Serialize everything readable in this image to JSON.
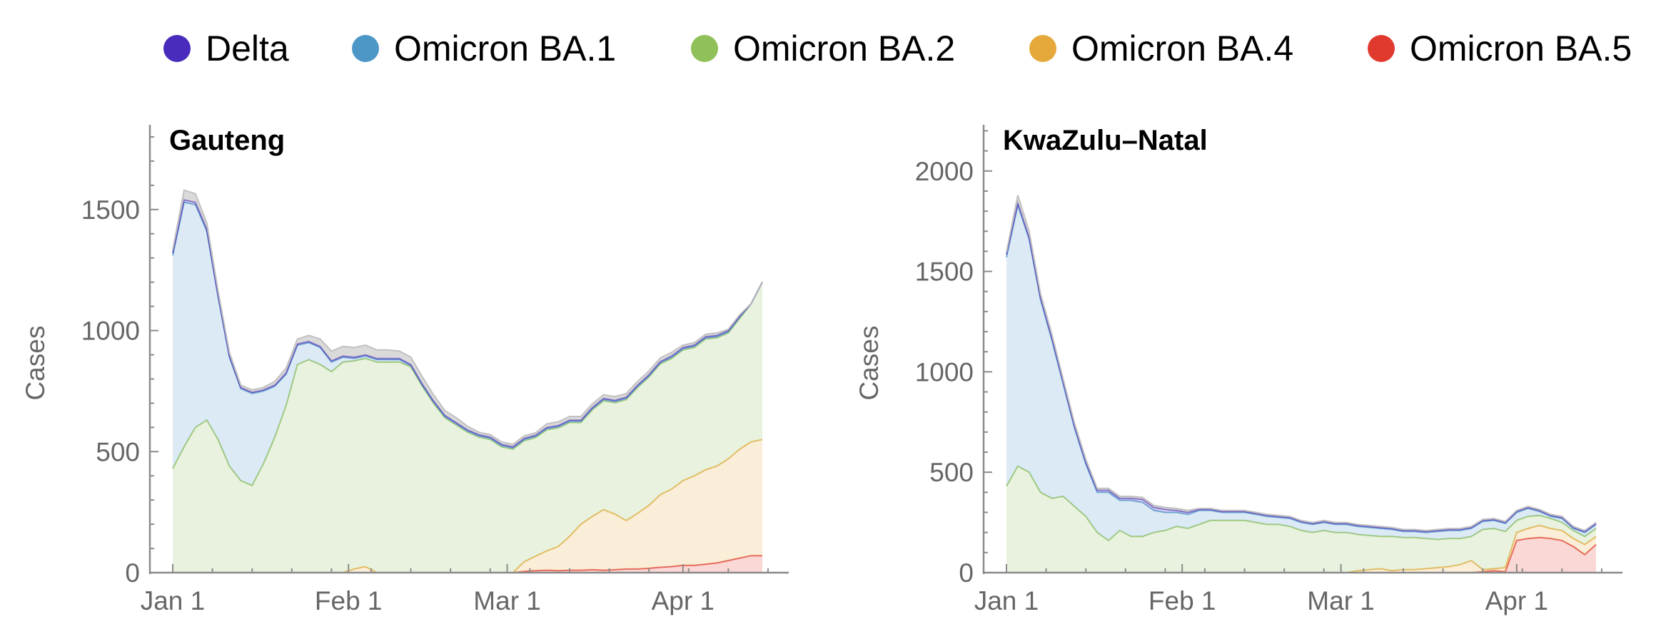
{
  "chart_data": [
    {
      "type": "area",
      "title": "Gauteng",
      "xlabel": "",
      "ylabel": "Cases",
      "ylim": [
        0,
        1850
      ],
      "yticks": [
        0,
        500,
        1000,
        1500
      ],
      "x_tick_labels": [
        {
          "label": "Jan 1",
          "day": 0
        },
        {
          "label": "Feb 1",
          "day": 31
        },
        {
          "label": "Mar 1",
          "day": 59
        },
        {
          "label": "Apr 1",
          "day": 90
        }
      ],
      "x": [
        0,
        2,
        4,
        6,
        8,
        10,
        12,
        14,
        16,
        18,
        20,
        22,
        24,
        26,
        28,
        30,
        32,
        34,
        36,
        38,
        40,
        42,
        44,
        46,
        48,
        50,
        52,
        54,
        56,
        58,
        60,
        62,
        64,
        66,
        68,
        70,
        72,
        74,
        76,
        78,
        80,
        82,
        84,
        86,
        88,
        90,
        92,
        94,
        96,
        98,
        100,
        102,
        104
      ],
      "stack_order": [
        "Omicron BA.5",
        "Omicron BA.4",
        "Omicron BA.2",
        "Omicron BA.1",
        "Delta"
      ],
      "series": [
        {
          "name": "Omicron BA.5",
          "color": "#e03a2f",
          "values": [
            0,
            0,
            0,
            0,
            0,
            0,
            0,
            0,
            0,
            0,
            0,
            0,
            0,
            0,
            0,
            0,
            0,
            0,
            0,
            0,
            0,
            0,
            0,
            0,
            0,
            0,
            0,
            0,
            0,
            0,
            0,
            5,
            8,
            10,
            8,
            10,
            10,
            12,
            10,
            12,
            15,
            15,
            18,
            22,
            25,
            30,
            30,
            35,
            40,
            50,
            60,
            70,
            70
          ]
        },
        {
          "name": "Omicron BA.4",
          "color": "#e4a93a",
          "values": [
            0,
            0,
            0,
            0,
            0,
            0,
            0,
            0,
            0,
            0,
            0,
            0,
            0,
            0,
            0,
            0,
            15,
            25,
            0,
            0,
            0,
            0,
            0,
            0,
            0,
            0,
            0,
            0,
            0,
            0,
            0,
            40,
            60,
            80,
            100,
            140,
            190,
            220,
            250,
            230,
            200,
            230,
            260,
            300,
            320,
            350,
            370,
            390,
            400,
            420,
            450,
            470,
            480
          ]
        },
        {
          "name": "Omicron BA.2",
          "color": "#8fc05a",
          "values": [
            430,
            520,
            600,
            630,
            550,
            440,
            380,
            360,
            450,
            560,
            690,
            860,
            880,
            860,
            830,
            870,
            860,
            860,
            870,
            870,
            870,
            850,
            770,
            700,
            640,
            610,
            580,
            560,
            550,
            520,
            510,
            500,
            490,
            500,
            490,
            470,
            420,
            440,
            450,
            460,
            500,
            520,
            530,
            540,
            540,
            540,
            530,
            540,
            530,
            520,
            540,
            570,
            650
          ]
        },
        {
          "name": "Omicron BA.1",
          "color": "#4d97c7",
          "values": [
            880,
            1010,
            920,
            780,
            590,
            450,
            380,
            380,
            300,
            210,
            130,
            80,
            70,
            70,
            40,
            20,
            10,
            10,
            10,
            10,
            10,
            5,
            5,
            5,
            5,
            5,
            5,
            5,
            5,
            5,
            5,
            5,
            5,
            5,
            5,
            5,
            5,
            5,
            5,
            5,
            5,
            5,
            5,
            5,
            5,
            5,
            5,
            5,
            5,
            5,
            5,
            0,
            0
          ]
        },
        {
          "name": "Delta",
          "color": "#4a2cbd",
          "values": [
            10,
            10,
            10,
            10,
            5,
            5,
            5,
            5,
            5,
            5,
            5,
            5,
            5,
            5,
            5,
            5,
            5,
            5,
            5,
            5,
            5,
            5,
            5,
            5,
            5,
            5,
            5,
            5,
            5,
            5,
            5,
            5,
            5,
            5,
            5,
            5,
            5,
            5,
            5,
            5,
            5,
            5,
            5,
            5,
            5,
            5,
            5,
            5,
            5,
            5,
            5,
            0,
            0
          ]
        }
      ],
      "other_band": {
        "color": "#bcbcbc",
        "values": [
          15,
          40,
          35,
          25,
          20,
          15,
          10,
          10,
          10,
          15,
          20,
          20,
          25,
          30,
          40,
          40,
          40,
          40,
          35,
          35,
          30,
          30,
          30,
          25,
          20,
          20,
          15,
          10,
          10,
          10,
          10,
          10,
          10,
          15,
          15,
          15,
          15,
          15,
          15,
          15,
          15,
          15,
          15,
          15,
          15,
          10,
          10,
          10,
          10,
          5,
          5,
          0,
          0
        ]
      }
    },
    {
      "type": "area",
      "title": "KwaZulu–Natal",
      "xlabel": "",
      "ylabel": "Cases",
      "ylim": [
        0,
        2230
      ],
      "yticks": [
        0,
        500,
        1000,
        1500,
        2000
      ],
      "x_tick_labels": [
        {
          "label": "Jan 1",
          "day": 0
        },
        {
          "label": "Feb 1",
          "day": 31
        },
        {
          "label": "Mar 1",
          "day": 59
        },
        {
          "label": "Apr 1",
          "day": 90
        }
      ],
      "x": [
        0,
        2,
        4,
        6,
        8,
        10,
        12,
        14,
        16,
        18,
        20,
        22,
        24,
        26,
        28,
        30,
        32,
        34,
        36,
        38,
        40,
        42,
        44,
        46,
        48,
        50,
        52,
        54,
        56,
        58,
        60,
        62,
        64,
        66,
        68,
        70,
        72,
        74,
        76,
        78,
        80,
        82,
        84,
        86,
        88,
        90,
        92,
        94,
        96,
        98,
        100,
        102,
        104
      ],
      "stack_order": [
        "Omicron BA.5",
        "Omicron BA.4",
        "Omicron BA.2",
        "Omicron BA.1",
        "Delta"
      ],
      "series": [
        {
          "name": "Omicron BA.5",
          "color": "#e03a2f",
          "values": [
            0,
            0,
            0,
            0,
            0,
            0,
            0,
            0,
            0,
            0,
            0,
            0,
            0,
            0,
            0,
            0,
            0,
            0,
            0,
            0,
            0,
            0,
            0,
            0,
            0,
            0,
            0,
            0,
            0,
            0,
            0,
            0,
            0,
            0,
            0,
            0,
            0,
            0,
            0,
            0,
            0,
            0,
            0,
            0,
            0,
            0,
            0,
            0,
            0,
            0,
            0,
            0,
            0
          ]
        },
        {
          "name": "Omicron BA.4",
          "color": "#e4a93a",
          "values": [
            0,
            0,
            0,
            0,
            0,
            0,
            0,
            0,
            0,
            0,
            0,
            0,
            0,
            0,
            0,
            0,
            0,
            0,
            0,
            0,
            0,
            0,
            0,
            0,
            0,
            0,
            0,
            0,
            0,
            0,
            0,
            0,
            0,
            0,
            0,
            0,
            0,
            0,
            0,
            0,
            0,
            0,
            0,
            0,
            0,
            0,
            0,
            0,
            0,
            0,
            0,
            0,
            0
          ]
        },
        {
          "name": "Omicron BA.2",
          "color": "#8fc05a",
          "values": [
            0,
            0,
            0,
            0,
            0,
            0,
            0,
            0,
            0,
            0,
            0,
            0,
            0,
            0,
            0,
            0,
            0,
            0,
            0,
            0,
            0,
            0,
            0,
            0,
            0,
            0,
            0,
            0,
            0,
            0,
            0,
            0,
            0,
            0,
            0,
            0,
            0,
            0,
            0,
            0,
            0,
            0,
            0,
            0,
            0,
            0,
            0,
            0,
            0,
            0,
            0,
            0,
            0
          ]
        },
        {
          "name": "Omicron BA.1",
          "color": "#4d97c7",
          "values": [
            0,
            0,
            0,
            0,
            0,
            0,
            0,
            0,
            0,
            0,
            0,
            0,
            0,
            0,
            0,
            0,
            0,
            0,
            0,
            0,
            0,
            0,
            0,
            0,
            0,
            0,
            0,
            0,
            0,
            0,
            0,
            0,
            0,
            0,
            0,
            0,
            0,
            0,
            0,
            0,
            0,
            0,
            0,
            0,
            0,
            0,
            0,
            0,
            0,
            0,
            0,
            0,
            0
          ]
        },
        {
          "name": "Delta",
          "color": "#4a2cbd",
          "values": [
            0,
            0,
            0,
            0,
            0,
            0,
            0,
            0,
            0,
            0,
            0,
            0,
            0,
            0,
            0,
            0,
            0,
            0,
            0,
            0,
            0,
            0,
            0,
            0,
            0,
            0,
            0,
            0,
            0,
            0,
            0,
            0,
            0,
            0,
            0,
            0,
            0,
            0,
            0,
            0,
            0,
            0,
            0,
            0,
            0,
            0,
            0,
            0,
            0,
            0,
            0,
            0,
            0
          ]
        }
      ],
      "other_band": {
        "color": "#bcbcbc",
        "values": [
          0,
          0,
          0,
          0,
          0,
          0,
          0,
          0,
          0,
          0,
          0,
          0,
          0,
          0,
          0,
          0,
          0,
          0,
          0,
          0,
          0,
          0,
          0,
          0,
          0,
          0,
          0,
          0,
          0,
          0,
          0,
          0,
          0,
          0,
          0,
          0,
          0,
          0,
          0,
          0,
          0,
          0,
          0,
          0,
          0,
          0,
          0,
          0,
          0,
          0,
          0,
          0,
          0
        ]
      }
    }
  ],
  "kzn_values": {
    "BA5": [
      0,
      0,
      0,
      0,
      0,
      0,
      0,
      0,
      0,
      0,
      0,
      0,
      0,
      0,
      0,
      0,
      0,
      0,
      0,
      0,
      0,
      0,
      0,
      0,
      0,
      0,
      0,
      0,
      0,
      0,
      0,
      0,
      0,
      0,
      0,
      0,
      0,
      0,
      0,
      0,
      0,
      0,
      5,
      10,
      5,
      160,
      170,
      175,
      170,
      160,
      130,
      90,
      140
    ],
    "BA4": [
      0,
      0,
      0,
      0,
      0,
      0,
      0,
      0,
      0,
      0,
      0,
      0,
      0,
      0,
      0,
      0,
      0,
      0,
      0,
      0,
      0,
      0,
      0,
      0,
      0,
      0,
      0,
      0,
      0,
      0,
      0,
      10,
      15,
      20,
      10,
      15,
      15,
      20,
      25,
      30,
      40,
      60,
      10,
      10,
      20,
      40,
      50,
      60,
      50,
      50,
      40,
      50,
      40
    ],
    "BA2": [
      430,
      530,
      500,
      400,
      370,
      380,
      330,
      280,
      200,
      160,
      210,
      180,
      180,
      200,
      210,
      230,
      220,
      240,
      260,
      260,
      260,
      260,
      250,
      240,
      240,
      230,
      210,
      200,
      210,
      200,
      200,
      180,
      170,
      160,
      170,
      160,
      160,
      150,
      140,
      140,
      130,
      120,
      200,
      200,
      180,
      60,
      60,
      50,
      50,
      40,
      40,
      40,
      40
    ],
    "BA1": [
      1140,
      1300,
      1160,
      960,
      790,
      560,
      390,
      260,
      200,
      240,
      150,
      180,
      170,
      110,
      90,
      70,
      70,
      70,
      50,
      40,
      40,
      40,
      40,
      40,
      35,
      40,
      40,
      40,
      40,
      40,
      40,
      40,
      40,
      40,
      35,
      30,
      30,
      30,
      40,
      40,
      40,
      40,
      40,
      40,
      40,
      40,
      40,
      20,
      10,
      20,
      10,
      20,
      20
    ],
    "Delta": [
      15,
      10,
      10,
      10,
      10,
      10,
      10,
      10,
      10,
      10,
      10,
      10,
      15,
      15,
      15,
      10,
      10,
      5,
      5,
      5,
      5,
      5,
      5,
      5,
      5,
      5,
      5,
      5,
      5,
      5,
      5,
      5,
      5,
      5,
      5,
      5,
      5,
      5,
      5,
      5,
      5,
      5,
      5,
      5,
      5,
      5,
      5,
      5,
      5,
      5,
      5,
      5,
      5
    ],
    "other": [
      10,
      40,
      30,
      20,
      20,
      15,
      15,
      15,
      10,
      10,
      10,
      10,
      10,
      10,
      10,
      10,
      10,
      5,
      5,
      5,
      5,
      5,
      5,
      5,
      5,
      5,
      5,
      5,
      5,
      5,
      5,
      5,
      5,
      5,
      5,
      5,
      5,
      5,
      5,
      5,
      5,
      5,
      5,
      5,
      5,
      5,
      5,
      5,
      5,
      5,
      5,
      5,
      5
    ]
  }
}
